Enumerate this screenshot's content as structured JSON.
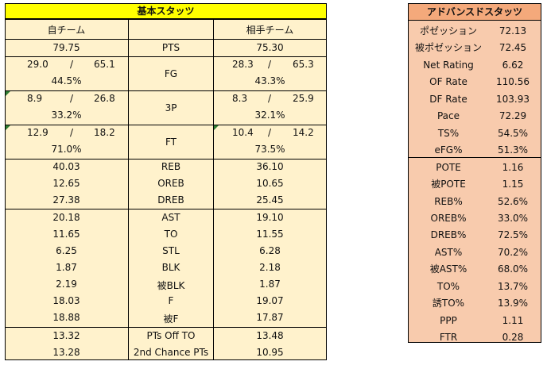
{
  "basic": {
    "title": "基本スタッツ",
    "headers": {
      "own": "自チーム",
      "mid": "",
      "opp": "相手チーム"
    },
    "pts": {
      "own": "79.75",
      "label": "PTS",
      "opp": "75.30"
    },
    "shooting": [
      {
        "label": "FG",
        "own_made": "29.0",
        "own_sep": "/",
        "own_att": "65.1",
        "own_pct": "44.5%",
        "opp_made": "28.3",
        "opp_sep": "/",
        "opp_att": "65.3",
        "opp_pct": "43.3%"
      },
      {
        "label": "3P",
        "own_made": "8.9",
        "own_sep": "/",
        "own_att": "26.8",
        "own_pct": "33.2%",
        "opp_made": "8.3",
        "opp_sep": "/",
        "opp_att": "25.9",
        "opp_pct": "32.1%"
      },
      {
        "label": "FT",
        "own_made": "12.9",
        "own_sep": "/",
        "own_att": "18.2",
        "own_pct": "71.0%",
        "opp_made": "10.4",
        "opp_sep": "/",
        "opp_att": "14.2",
        "opp_pct": "73.5%"
      }
    ],
    "rebounds": [
      {
        "own": "40.03",
        "label": "REB",
        "opp": "36.10"
      },
      {
        "own": "12.65",
        "label": "OREB",
        "opp": "10.65"
      },
      {
        "own": "27.38",
        "label": "DREB",
        "opp": "25.45"
      }
    ],
    "misc": [
      {
        "own": "20.18",
        "label": "AST",
        "opp": "19.10"
      },
      {
        "own": "11.65",
        "label": "TO",
        "opp": "11.55"
      },
      {
        "own": "6.25",
        "label": "STL",
        "opp": "6.28"
      },
      {
        "own": "1.87",
        "label": "BLK",
        "opp": "2.18"
      },
      {
        "own": "2.19",
        "label": "被BLK",
        "opp": "1.87"
      },
      {
        "own": "18.03",
        "label": "F",
        "opp": "19.07"
      },
      {
        "own": "18.88",
        "label": "被F",
        "opp": "17.87"
      }
    ],
    "extra": [
      {
        "own": "13.32",
        "label": "PTs Off TO",
        "opp": "13.48"
      },
      {
        "own": "13.28",
        "label": "2nd Chance PTs",
        "opp": "10.95"
      }
    ]
  },
  "advanced": {
    "title": "アドバンスドスタッツ",
    "rows": [
      {
        "label": "ポゼッション",
        "value": "72.13"
      },
      {
        "label": "被ポゼッション",
        "value": "72.45"
      },
      {
        "label": "Net Rating",
        "value": "6.62"
      },
      {
        "label": "OF Rate",
        "value": "110.56"
      },
      {
        "label": "DF Rate",
        "value": "103.93"
      },
      {
        "label": "Pace",
        "value": "72.29"
      },
      {
        "label": "TS%",
        "value": "54.5%"
      },
      {
        "label": "eFG%",
        "value": "51.3%"
      },
      {
        "label": "POTE",
        "value": "1.16"
      },
      {
        "label": "被POTE",
        "value": "1.15"
      },
      {
        "label": "REB%",
        "value": "52.6%"
      },
      {
        "label": "OREB%",
        "value": "33.0%"
      },
      {
        "label": "DREB%",
        "value": "72.5%"
      },
      {
        "label": "AST%",
        "value": "70.2%"
      },
      {
        "label": "被AST%",
        "value": "68.0%"
      },
      {
        "label": "TO%",
        "value": "13.7%"
      },
      {
        "label": "誘TO%",
        "value": "13.9%"
      },
      {
        "label": "PPP",
        "value": "1.11"
      },
      {
        "label": "FTR",
        "value": "0.28"
      }
    ]
  },
  "colors": {
    "basic_title_bg": "#ffff00",
    "basic_body_bg": "#fff2cc",
    "adv_title_bg": "#f4a97b",
    "adv_body_bg": "#f8cbad",
    "corner_marker": "#2e7d32"
  }
}
